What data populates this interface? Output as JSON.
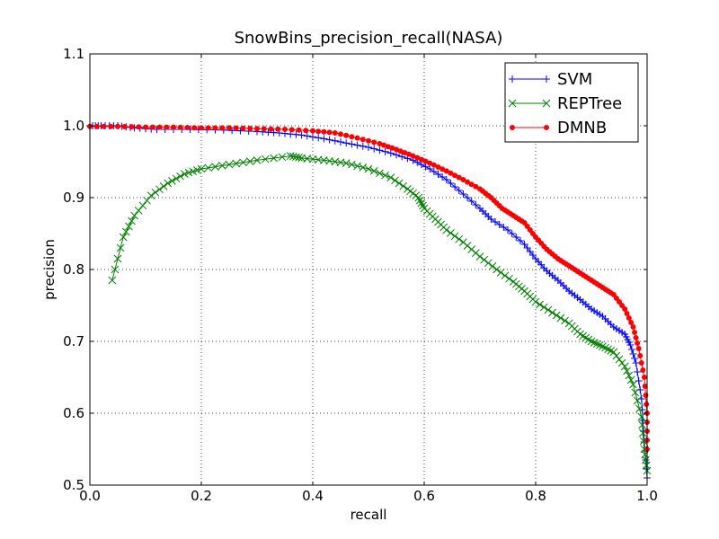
{
  "chart_data": {
    "type": "line",
    "title": "SnowBins_precision_recall(NASA)",
    "xlabel": "recall",
    "ylabel": "precision",
    "xlim": [
      0.0,
      1.0
    ],
    "ylim": [
      0.5,
      1.1
    ],
    "xticks": [
      "0.0",
      "0.2",
      "0.4",
      "0.6",
      "0.8",
      "1.0"
    ],
    "yticks": [
      "0.5",
      "0.6",
      "0.7",
      "0.8",
      "0.9",
      "1.0",
      "1.1"
    ],
    "grid": true,
    "legend_position": "top-right",
    "series": [
      {
        "name": "SVM",
        "color": "#0000ff",
        "marker": "plus",
        "points": [
          [
            0.0,
            1.0
          ],
          [
            0.02,
            1.0
          ],
          [
            0.05,
            1.0
          ],
          [
            0.08,
            0.997
          ],
          [
            0.12,
            0.995
          ],
          [
            0.18,
            0.995
          ],
          [
            0.24,
            0.994
          ],
          [
            0.3,
            0.992
          ],
          [
            0.34,
            0.99
          ],
          [
            0.38,
            0.987
          ],
          [
            0.42,
            0.982
          ],
          [
            0.46,
            0.976
          ],
          [
            0.5,
            0.97
          ],
          [
            0.54,
            0.962
          ],
          [
            0.58,
            0.952
          ],
          [
            0.61,
            0.94
          ],
          [
            0.64,
            0.925
          ],
          [
            0.67,
            0.905
          ],
          [
            0.7,
            0.885
          ],
          [
            0.72,
            0.87
          ],
          [
            0.75,
            0.855
          ],
          [
            0.78,
            0.835
          ],
          [
            0.8,
            0.815
          ],
          [
            0.82,
            0.798
          ],
          [
            0.84,
            0.785
          ],
          [
            0.86,
            0.77
          ],
          [
            0.88,
            0.758
          ],
          [
            0.9,
            0.745
          ],
          [
            0.92,
            0.735
          ],
          [
            0.94,
            0.72
          ],
          [
            0.96,
            0.71
          ],
          [
            0.97,
            0.695
          ],
          [
            0.98,
            0.67
          ],
          [
            0.99,
            0.62
          ],
          [
            0.995,
            0.56
          ],
          [
            1.0,
            0.51
          ]
        ]
      },
      {
        "name": "REPTree",
        "color": "#008000",
        "marker": "x",
        "points": [
          [
            0.04,
            0.785
          ],
          [
            0.06,
            0.845
          ],
          [
            0.08,
            0.875
          ],
          [
            0.11,
            0.903
          ],
          [
            0.14,
            0.92
          ],
          [
            0.17,
            0.933
          ],
          [
            0.2,
            0.94
          ],
          [
            0.25,
            0.946
          ],
          [
            0.3,
            0.952
          ],
          [
            0.36,
            0.958
          ],
          [
            0.38,
            0.955
          ],
          [
            0.42,
            0.952
          ],
          [
            0.46,
            0.948
          ],
          [
            0.5,
            0.94
          ],
          [
            0.54,
            0.928
          ],
          [
            0.57,
            0.912
          ],
          [
            0.59,
            0.9
          ],
          [
            0.6,
            0.885
          ],
          [
            0.62,
            0.87
          ],
          [
            0.64,
            0.855
          ],
          [
            0.67,
            0.838
          ],
          [
            0.7,
            0.818
          ],
          [
            0.73,
            0.8
          ],
          [
            0.76,
            0.783
          ],
          [
            0.78,
            0.77
          ],
          [
            0.8,
            0.755
          ],
          [
            0.83,
            0.74
          ],
          [
            0.86,
            0.725
          ],
          [
            0.88,
            0.71
          ],
          [
            0.9,
            0.7
          ],
          [
            0.92,
            0.693
          ],
          [
            0.94,
            0.685
          ],
          [
            0.96,
            0.665
          ],
          [
            0.975,
            0.64
          ],
          [
            0.99,
            0.595
          ],
          [
            0.995,
            0.55
          ],
          [
            1.0,
            0.52
          ]
        ]
      },
      {
        "name": "DMNB",
        "color": "#ff0000",
        "marker": "dot",
        "points": [
          [
            0.0,
            0.999
          ],
          [
            0.05,
            0.999
          ],
          [
            0.1,
            0.998
          ],
          [
            0.15,
            0.998
          ],
          [
            0.2,
            0.997
          ],
          [
            0.25,
            0.997
          ],
          [
            0.3,
            0.996
          ],
          [
            0.35,
            0.995
          ],
          [
            0.4,
            0.993
          ],
          [
            0.44,
            0.99
          ],
          [
            0.48,
            0.983
          ],
          [
            0.52,
            0.975
          ],
          [
            0.55,
            0.967
          ],
          [
            0.58,
            0.958
          ],
          [
            0.61,
            0.948
          ],
          [
            0.64,
            0.937
          ],
          [
            0.67,
            0.925
          ],
          [
            0.7,
            0.912
          ],
          [
            0.72,
            0.9
          ],
          [
            0.74,
            0.885
          ],
          [
            0.76,
            0.875
          ],
          [
            0.78,
            0.865
          ],
          [
            0.8,
            0.845
          ],
          [
            0.82,
            0.828
          ],
          [
            0.84,
            0.815
          ],
          [
            0.86,
            0.805
          ],
          [
            0.88,
            0.795
          ],
          [
            0.9,
            0.785
          ],
          [
            0.92,
            0.775
          ],
          [
            0.94,
            0.765
          ],
          [
            0.96,
            0.745
          ],
          [
            0.975,
            0.72
          ],
          [
            0.985,
            0.69
          ],
          [
            0.995,
            0.65
          ],
          [
            1.0,
            0.6
          ],
          [
            1.0,
            0.55
          ]
        ]
      }
    ]
  }
}
